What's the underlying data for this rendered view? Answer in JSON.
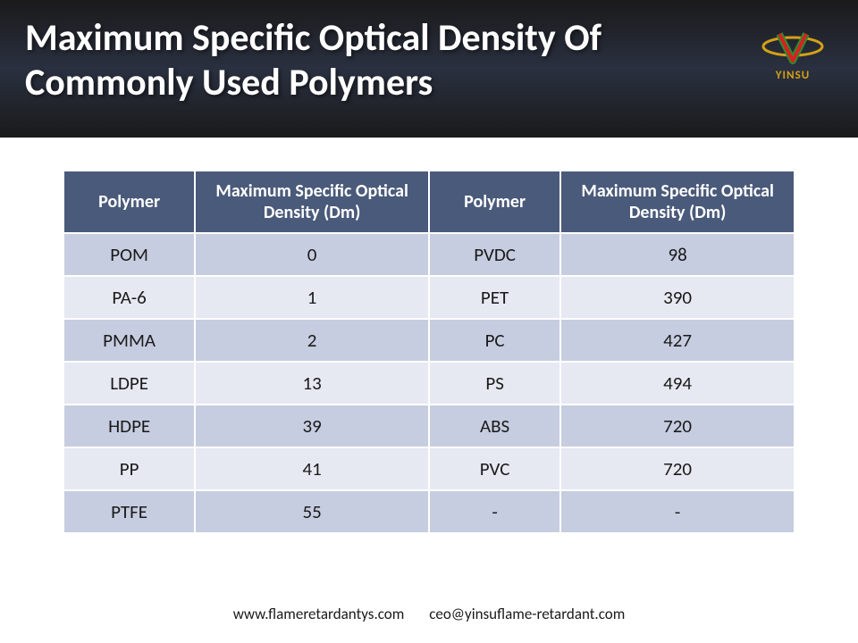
{
  "header": {
    "title": "Maximum Specific Optical Density Of Commonly Used Polymers",
    "logo_text": "YINSU"
  },
  "watermark": "YINSU",
  "table": {
    "columns": [
      "Polymer",
      "Maximum Specific Optical Density (Dm)",
      "Polymer",
      "Maximum Specific Optical Density (Dm)"
    ],
    "rows": [
      [
        "POM",
        "0",
        "PVDC",
        "98"
      ],
      [
        "PA-6",
        "1",
        "PET",
        "390"
      ],
      [
        "PMMA",
        "2",
        "PC",
        "427"
      ],
      [
        "LDPE",
        "13",
        "PS",
        "494"
      ],
      [
        "HDPE",
        "39",
        "ABS",
        "720"
      ],
      [
        "PP",
        "41",
        "PVC",
        "720"
      ],
      [
        "PTFE",
        "55",
        "-",
        "-"
      ]
    ],
    "header_bg": "#4a5a7a",
    "header_fg": "#ffffff",
    "row_odd_bg": "#c7cde0",
    "row_even_bg": "#e6e9f2",
    "cell_fg": "#1a1a1a"
  },
  "footer": {
    "url": "www.flameretardantys.com",
    "email": "ceo@yinsuflame-retardant.com"
  }
}
